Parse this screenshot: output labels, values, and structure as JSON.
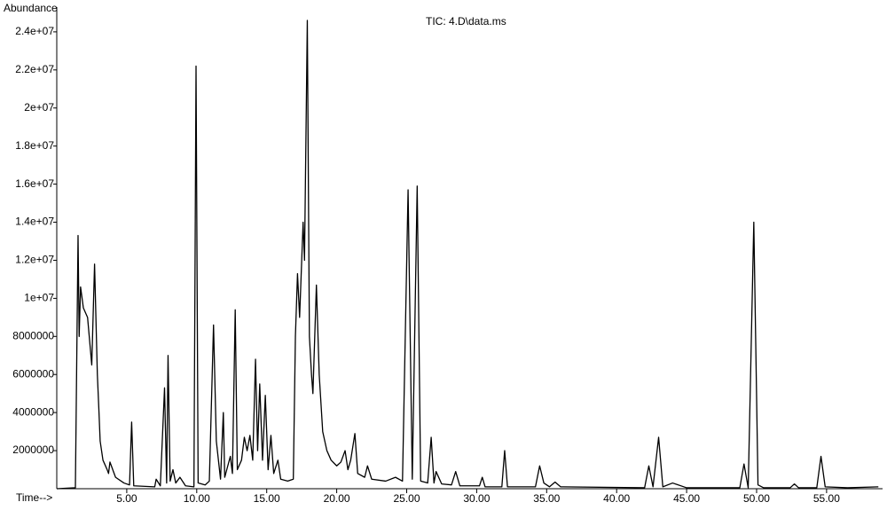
{
  "chart_data": {
    "type": "line",
    "title": "TIC: 4.D\\data.ms",
    "y_label": "Abundance",
    "x_label": "Time-->",
    "color": "#000000",
    "x": [
      0.0,
      1.33,
      1.52,
      1.6,
      1.7,
      1.9,
      2.2,
      2.5,
      2.7,
      2.9,
      3.0,
      3.1,
      3.3,
      3.6,
      3.7,
      3.8,
      4.2,
      4.8,
      5.2,
      5.35,
      5.5,
      7.0,
      7.1,
      7.4,
      7.7,
      7.85,
      7.95,
      8.1,
      8.3,
      8.5,
      8.8,
      9.2,
      9.8,
      9.95,
      10.1,
      10.6,
      10.9,
      11.2,
      11.4,
      11.7,
      11.9,
      12.0,
      12.4,
      12.55,
      12.75,
      12.9,
      13.2,
      13.4,
      13.6,
      13.8,
      14.0,
      14.2,
      14.35,
      14.5,
      14.7,
      14.9,
      15.1,
      15.3,
      15.5,
      15.8,
      16.0,
      16.5,
      16.9,
      17.05,
      17.2,
      17.35,
      17.6,
      17.7,
      17.9,
      18.05,
      18.2,
      18.3,
      18.55,
      18.75,
      19.0,
      19.3,
      19.6,
      20.0,
      20.3,
      20.6,
      20.8,
      21.0,
      21.3,
      21.5,
      22.0,
      22.2,
      22.5,
      23.5,
      24.2,
      24.7,
      25.1,
      25.4,
      25.75,
      26.0,
      26.5,
      26.75,
      26.95,
      27.1,
      27.5,
      28.2,
      28.5,
      28.8,
      30.2,
      30.4,
      30.6,
      31.8,
      32.0,
      32.2,
      34.2,
      34.5,
      34.8,
      35.2,
      35.6,
      36.0,
      42.0,
      42.3,
      42.6,
      43.0,
      43.3,
      44.0,
      45.0,
      48.8,
      49.1,
      49.4,
      49.8,
      50.1,
      50.5,
      52.4,
      52.7,
      53.0,
      54.3,
      54.6,
      54.9,
      56.5,
      58.7
    ],
    "values": [
      0,
      50000,
      13300000,
      8000000,
      10600000,
      9500000,
      9000000,
      6500000,
      11800000,
      6000000,
      4300000,
      2500000,
      1500000,
      1000000,
      800000,
      1400000,
      600000,
      300000,
      200000,
      3500000,
      150000,
      100000,
      500000,
      150000,
      5300000,
      300000,
      7000000,
      400000,
      1000000,
      300000,
      600000,
      150000,
      100000,
      22200000,
      300000,
      200000,
      400000,
      8600000,
      2500000,
      500000,
      4000000,
      600000,
      1700000,
      800000,
      9400000,
      1000000,
      1500000,
      2700000,
      2000000,
      2800000,
      1500000,
      6800000,
      2000000,
      5500000,
      1500000,
      4900000,
      1000000,
      2800000,
      800000,
      1500000,
      500000,
      400000,
      500000,
      8000000,
      11300000,
      9000000,
      14000000,
      12000000,
      24600000,
      8000000,
      6000000,
      5000000,
      10700000,
      6000000,
      3000000,
      2000000,
      1500000,
      1200000,
      1400000,
      2000000,
      1000000,
      1500000,
      2900000,
      800000,
      600000,
      1200000,
      500000,
      400000,
      600000,
      400000,
      15700000,
      500000,
      15900000,
      400000,
      300000,
      2700000,
      300000,
      900000,
      250000,
      200000,
      900000,
      150000,
      150000,
      600000,
      100000,
      100000,
      2000000,
      100000,
      100000,
      1200000,
      300000,
      100000,
      350000,
      100000,
      50000,
      1200000,
      100000,
      2700000,
      100000,
      300000,
      50000,
      50000,
      1300000,
      50000,
      14000000,
      200000,
      50000,
      50000,
      250000,
      50000,
      50000,
      1700000,
      100000,
      50000,
      100000
    ],
    "xlim": [
      0,
      59
    ],
    "ylim": [
      0,
      25300000
    ],
    "xticks": [
      {
        "value": 5,
        "label": "5.00"
      },
      {
        "value": 10,
        "label": "10.00"
      },
      {
        "value": 15,
        "label": "15.00"
      },
      {
        "value": 20,
        "label": "20.00"
      },
      {
        "value": 25,
        "label": "25.00"
      },
      {
        "value": 30,
        "label": "30.00"
      },
      {
        "value": 35,
        "label": "35.00"
      },
      {
        "value": 40,
        "label": "40.00"
      },
      {
        "value": 45,
        "label": "45.00"
      },
      {
        "value": 50,
        "label": "50.00"
      },
      {
        "value": 55,
        "label": "55.00"
      }
    ],
    "yticks": [
      2000000,
      4000000,
      6000000,
      8000000,
      {
        "value": 10000000,
        "label": "1e+07"
      },
      {
        "value": 12000000,
        "label": "1.2e+07"
      },
      {
        "value": 14000000,
        "label": "1.4e+07"
      },
      {
        "value": 16000000,
        "label": "1.6e+07"
      },
      {
        "value": 18000000,
        "label": "1.8e+07"
      },
      {
        "value": 20000000,
        "label": "2e+07"
      },
      {
        "value": 22000000,
        "label": "2.2e+07"
      },
      {
        "value": 24000000,
        "label": "2.4e+07"
      }
    ]
  }
}
